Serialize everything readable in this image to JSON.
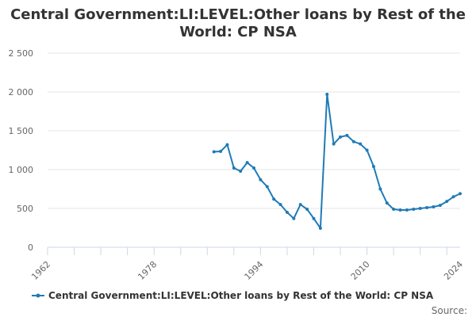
{
  "chart_data": {
    "type": "line",
    "title_lines": [
      "Central Government:LI:LEVEL:Other loans by Rest of the",
      "World: CP NSA"
    ],
    "xlabel": "",
    "ylabel": "",
    "x_ticks": [
      "1962",
      "1978",
      "1994",
      "2010",
      "2024"
    ],
    "y_ticks": [
      "0",
      "500",
      "1 000",
      "1 500",
      "2 000",
      "2 500"
    ],
    "xlim": [
      1962,
      2024
    ],
    "ylim": [
      0,
      2500
    ],
    "grid": "horizontal",
    "legend_position": "bottom",
    "series": [
      {
        "name": "Central Government:LI:LEVEL:Other loans by Rest of the World: CP NSA",
        "color": "#1f7bb6",
        "x": [
          1987,
          1988,
          1989,
          1990,
          1991,
          1992,
          1993,
          1994,
          1995,
          1996,
          1997,
          1998,
          1999,
          2000,
          2001,
          2002,
          2003,
          2004,
          2005,
          2006,
          2007,
          2008,
          2009,
          2010,
          2011,
          2012,
          2013,
          2014,
          2015,
          2016,
          2017,
          2018,
          2019,
          2020,
          2021,
          2022,
          2023,
          2024
        ],
        "values": [
          1230,
          1235,
          1320,
          1020,
          980,
          1090,
          1020,
          870,
          780,
          620,
          550,
          450,
          370,
          550,
          490,
          370,
          245,
          1970,
          1330,
          1420,
          1440,
          1360,
          1330,
          1250,
          1040,
          750,
          570,
          490,
          480,
          480,
          490,
          500,
          510,
          520,
          540,
          590,
          650,
          690
        ]
      }
    ]
  },
  "credits": "Source:"
}
